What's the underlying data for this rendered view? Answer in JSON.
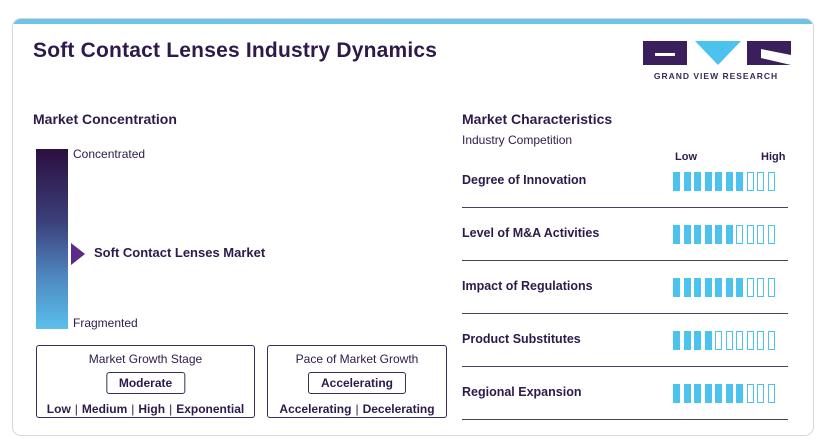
{
  "header": {
    "title": "Soft Contact Lenses Industry Dynamics",
    "brand": "GRAND VIEW RESEARCH"
  },
  "colors": {
    "accent": "#4cc2ee",
    "dark": "#2d1a4a",
    "marker": "#5a2a8c"
  },
  "market_concentration": {
    "title": "Market Concentration",
    "top_label": "Concentrated",
    "bottom_label": "Fragmented",
    "market_label": "Soft Contact Lenses Market"
  },
  "growth_stage": {
    "title": "Market Growth Stage",
    "value": "Moderate",
    "scale": [
      "Low",
      "Medium",
      "High",
      "Exponential"
    ]
  },
  "growth_pace": {
    "title": "Pace of Market Growth",
    "value": "Accelerating",
    "scale": [
      "Accelerating",
      "Decelerating"
    ]
  },
  "market_characteristics": {
    "title": "Market Characteristics",
    "subtitle": "Industry Competition",
    "low_label": "Low",
    "high_label": "High",
    "segments_total": 10,
    "rows": [
      {
        "label": "Degree of Innovation",
        "filled": 7
      },
      {
        "label": "Level of M&A Activities",
        "filled": 6
      },
      {
        "label": "Impact of Regulations",
        "filled": 7
      },
      {
        "label": "Product Substitutes",
        "filled": 4
      },
      {
        "label": "Regional Expansion",
        "filled": 7
      }
    ]
  }
}
